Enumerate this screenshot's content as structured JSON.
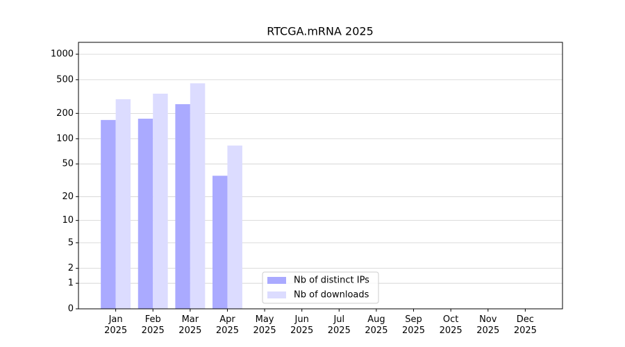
{
  "chart_data": {
    "type": "bar",
    "title": "RTCGA.mRNA 2025",
    "categories": [
      "Jan\n2025",
      "Feb\n2025",
      "Mar\n2025",
      "Apr\n2025",
      "May\n2025",
      "Jun\n2025",
      "Jul\n2025",
      "Aug\n2025",
      "Sep\n2025",
      "Oct\n2025",
      "Nov\n2025",
      "Dec\n2025"
    ],
    "series": [
      {
        "name": "Nb of distinct IPs",
        "color": "#aaaaff",
        "values": [
          167,
          173,
          257,
          36,
          0,
          0,
          0,
          0,
          0,
          0,
          0,
          0
        ]
      },
      {
        "name": "Nb of downloads",
        "color": "#dcdcff",
        "values": [
          294,
          342,
          453,
          83,
          0,
          0,
          0,
          0,
          0,
          0,
          0,
          0
        ]
      }
    ],
    "yscale": "log1p",
    "ylim": [
      0,
      1380
    ],
    "yticks": [
      0,
      1,
      2,
      5,
      10,
      20,
      50,
      100,
      200,
      500,
      1000
    ],
    "grid": true,
    "legend": "lower center"
  }
}
